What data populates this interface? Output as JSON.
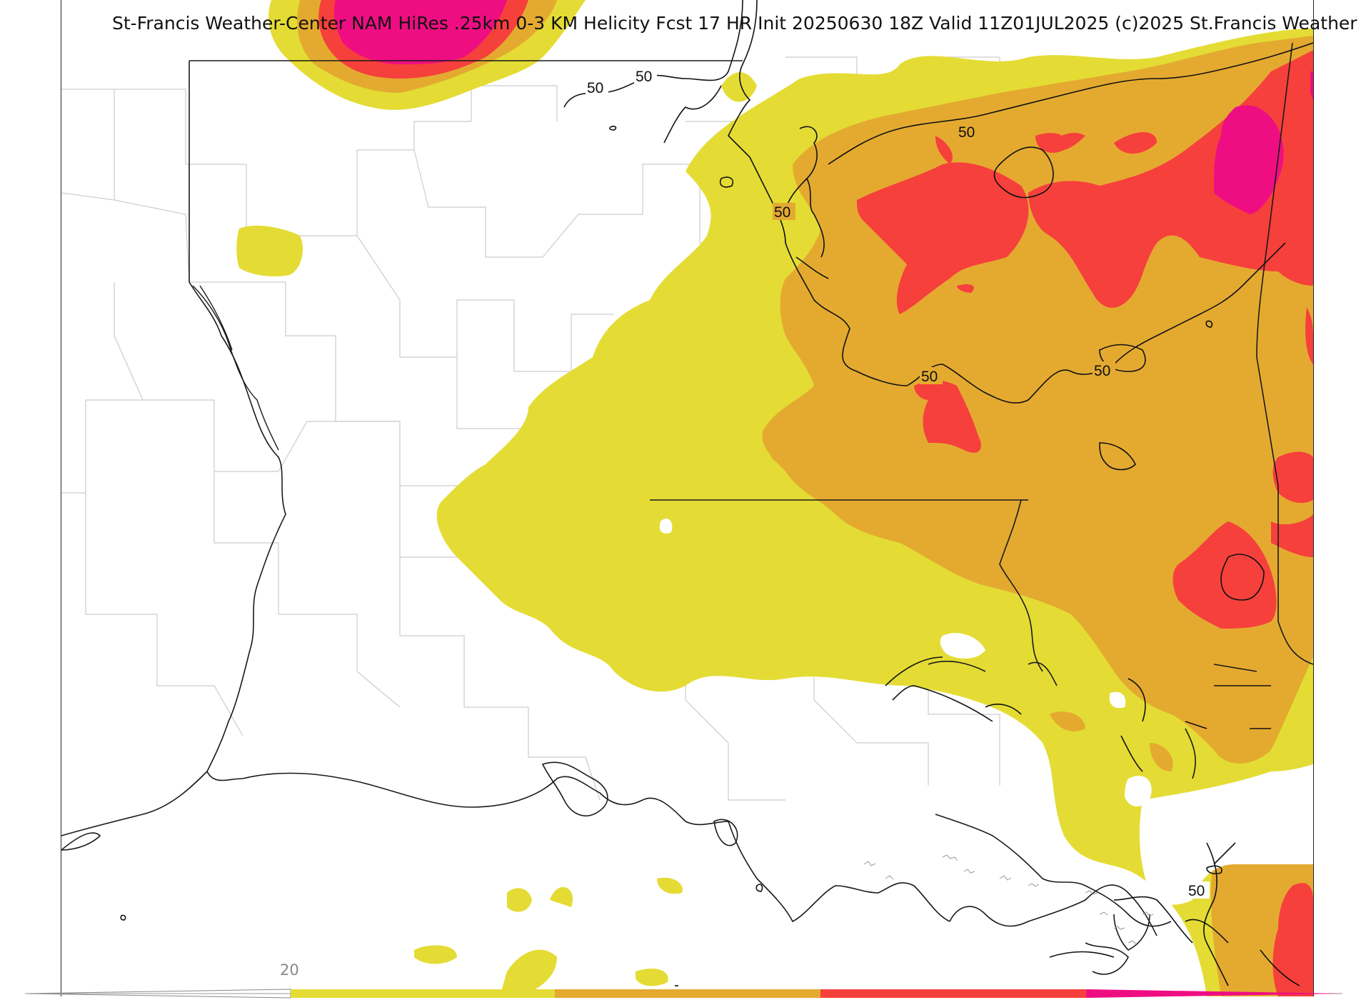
{
  "title": "St-Francis Weather-Center NAM HiRes .25km 0-3 KM Helicity Fcst 17 HR Init 20250630 18Z  Valid 11Z01JUL2025    (c)2025 St.Francis Weather",
  "contour": {
    "value_label": "50",
    "label_count": 7
  },
  "legend": {
    "first_label": "20",
    "colors": [
      "#e4dc34",
      "#e4aa30",
      "#f6403c",
      "#ee0e82"
    ]
  },
  "colors": {
    "yellow": "#e4dc34",
    "orange": "#e4aa30",
    "red": "#f6403c",
    "magenta": "#ee0e82",
    "state_line": "#111111",
    "county_line": "#cccccc"
  }
}
